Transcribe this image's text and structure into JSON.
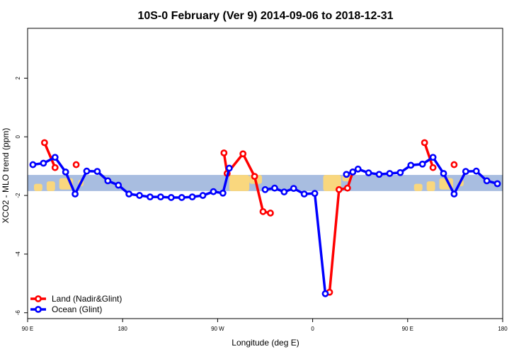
{
  "chart_data": {
    "type": "line",
    "title": "10S-0 February (Ver 9)   2014-09-06 to 2018-12-31",
    "xlabel": "Longitude (deg E)",
    "ylabel": "XCO2 - MLO trend (ppm)",
    "xlim": [
      90,
      540
    ],
    "ylim": [
      -6.2,
      3.7
    ],
    "x_ticks": [
      {
        "value": 90,
        "label": "90 E"
      },
      {
        "value": 180,
        "label": "180"
      },
      {
        "value": 270,
        "label": "90 W"
      },
      {
        "value": 360,
        "label": "0"
      },
      {
        "value": 450,
        "label": "90 E"
      },
      {
        "value": 540,
        "label": "180"
      }
    ],
    "y_ticks": [
      {
        "value": 2,
        "label": "2"
      },
      {
        "value": 0,
        "label": "0"
      },
      {
        "value": -2,
        "label": "-2"
      },
      {
        "value": -4,
        "label": "-4"
      },
      {
        "value": -6,
        "label": "-6"
      }
    ],
    "grid": false,
    "legend_position": "bottom-left",
    "map_band": {
      "y_top": -1.3,
      "y_bottom": -1.85,
      "ocean_color": "#a8bde0",
      "land_color": "#f9d77e"
    },
    "series": [
      {
        "name": "Land (Nadir&Glint)",
        "color": "#ff0000",
        "segments": [
          [
            [
              106,
              -0.2
            ],
            [
              116,
              -1.05
            ]
          ],
          [
            [
              136,
              -0.95
            ]
          ],
          [
            [
              276,
              -0.55
            ],
            [
              279,
              -1.25
            ],
            [
              294,
              -0.58
            ],
            [
              305,
              -1.35
            ],
            [
              313,
              -2.55
            ],
            [
              320,
              -2.6
            ]
          ],
          [
            [
              376,
              -5.3
            ],
            [
              385,
              -1.8
            ],
            [
              393,
              -1.75
            ],
            [
              398,
              -1.2
            ]
          ],
          [
            [
              466,
              -0.2
            ],
            [
              474,
              -1.05
            ]
          ],
          [
            [
              494,
              -0.95
            ]
          ]
        ]
      },
      {
        "name": "Ocean (Glint)",
        "color": "#0000ff",
        "segments": [
          [
            [
              95,
              -0.95
            ],
            [
              105,
              -0.9
            ],
            [
              116,
              -0.7
            ],
            [
              126,
              -1.2
            ],
            [
              135,
              -1.95
            ],
            [
              146,
              -1.17
            ],
            [
              156,
              -1.18
            ],
            [
              166,
              -1.5
            ],
            [
              176,
              -1.65
            ],
            [
              186,
              -1.95
            ],
            [
              196,
              -2.0
            ],
            [
              206,
              -2.05
            ],
            [
              216,
              -2.05
            ],
            [
              226,
              -2.07
            ],
            [
              236,
              -2.07
            ],
            [
              246,
              -2.05
            ],
            [
              256,
              -2.0
            ],
            [
              266,
              -1.87
            ],
            [
              275,
              -1.92
            ],
            [
              281,
              -1.07
            ]
          ],
          [
            [
              315,
              -1.8
            ],
            [
              324,
              -1.75
            ],
            [
              333,
              -1.88
            ],
            [
              342,
              -1.76
            ],
            [
              352,
              -1.95
            ],
            [
              362,
              -1.93
            ],
            [
              372,
              -5.35
            ]
          ],
          [
            [
              392,
              -1.28
            ],
            [
              398,
              -1.2
            ],
            [
              403,
              -1.1
            ],
            [
              413,
              -1.23
            ],
            [
              423,
              -1.28
            ],
            [
              433,
              -1.25
            ],
            [
              443,
              -1.22
            ],
            [
              453,
              -0.97
            ],
            [
              464,
              -0.93
            ],
            [
              474,
              -0.7
            ],
            [
              484,
              -1.25
            ],
            [
              494,
              -1.95
            ],
            [
              505,
              -1.18
            ],
            [
              515,
              -1.17
            ],
            [
              525,
              -1.5
            ],
            [
              535,
              -1.6
            ]
          ]
        ]
      }
    ]
  }
}
